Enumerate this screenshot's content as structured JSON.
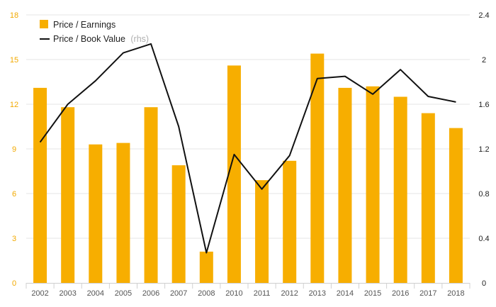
{
  "chart_data": {
    "type": "bar",
    "categories": [
      "2002",
      "2003",
      "2004",
      "2005",
      "2006",
      "2007",
      "2008",
      "2010",
      "2011",
      "2012",
      "2013",
      "2014",
      "2015",
      "2016",
      "2017",
      "2018"
    ],
    "series": [
      {
        "name": "Price / Earnings",
        "type": "bar",
        "axis": "left",
        "color": "#f7ae00",
        "values": [
          13.1,
          11.8,
          9.3,
          9.4,
          11.8,
          7.9,
          2.1,
          14.6,
          6.9,
          8.2,
          15.4,
          13.1,
          13.2,
          12.5,
          11.4,
          10.4
        ]
      },
      {
        "name": "Price / Book Value",
        "name_suffix": "(rhs)",
        "type": "line",
        "axis": "right",
        "color": "#111111",
        "values": [
          1.26,
          1.6,
          1.81,
          2.06,
          2.14,
          1.4,
          0.27,
          1.15,
          0.84,
          1.14,
          1.83,
          1.85,
          1.69,
          1.91,
          1.67,
          1.62
        ]
      }
    ],
    "yleft": {
      "ticks": [
        "0",
        "3",
        "6",
        "9",
        "12",
        "15",
        "18"
      ],
      "ylim": [
        0,
        18
      ]
    },
    "yright": {
      "ticks": [
        "0",
        "0.4",
        "0.8",
        "1.2",
        "1.6",
        "2",
        "2.4"
      ],
      "ylim": [
        0,
        2.4
      ]
    },
    "grid": true,
    "legend_position": "top-left",
    "xlabel": "",
    "ylabel": "",
    "title": ""
  }
}
